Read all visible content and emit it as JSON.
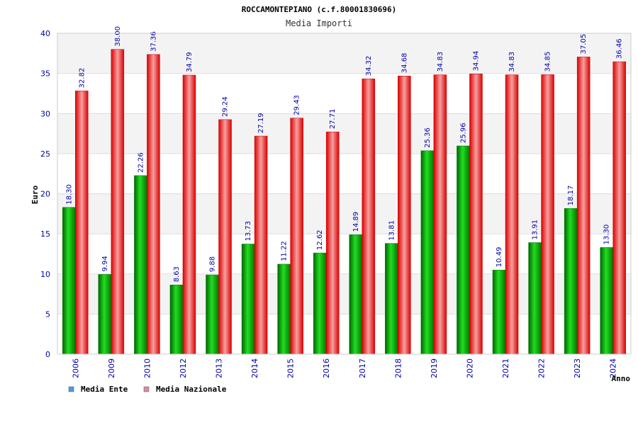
{
  "chart_data": {
    "type": "bar",
    "title": "ROCCAMONTEPIANO (c.f.80001830696)",
    "subtitle": "Media Importi",
    "ylabel": "Euro",
    "xlabel": "Anno",
    "ylim": [
      0,
      40
    ],
    "yticks": [
      0,
      5,
      10,
      15,
      20,
      25,
      30,
      35,
      40
    ],
    "categories": [
      "2006",
      "2009",
      "2010",
      "2012",
      "2013",
      "2014",
      "2015",
      "2016",
      "2017",
      "2018",
      "2019",
      "2020",
      "2021",
      "2022",
      "2023",
      "2024"
    ],
    "series": [
      {
        "name": "Media Ente",
        "values": [
          18.3,
          9.94,
          22.26,
          8.63,
          9.88,
          13.73,
          11.22,
          12.62,
          14.89,
          13.81,
          25.36,
          25.96,
          10.49,
          13.91,
          18.17,
          13.3
        ],
        "labels": [
          "18.30",
          "9.94",
          "22.26",
          "8.63",
          "9.88",
          "13.73",
          "11.22",
          "12.62",
          "14.89",
          "13.81",
          "25.36",
          "25.96",
          "10.49",
          "13.91",
          "18.17",
          "13.30"
        ]
      },
      {
        "name": "Media Nazionale",
        "values": [
          32.82,
          38.0,
          37.36,
          34.79,
          29.24,
          27.19,
          29.43,
          27.71,
          34.32,
          34.68,
          34.83,
          34.94,
          34.83,
          34.85,
          37.05,
          36.46
        ],
        "labels": [
          "32.82",
          "38.00",
          "37.36",
          "34.79",
          "29.24",
          "27.19",
          "29.43",
          "27.71",
          "34.32",
          "34.68",
          "34.83",
          "34.94",
          "34.83",
          "34.85",
          "37.05",
          "36.46"
        ]
      }
    ],
    "legend_colors": [
      "#5599dd",
      "#dd88aa"
    ],
    "bar_colors": [
      "#00bb00",
      "#ee1111"
    ],
    "grid": true,
    "legend_position": "bottom-left"
  }
}
